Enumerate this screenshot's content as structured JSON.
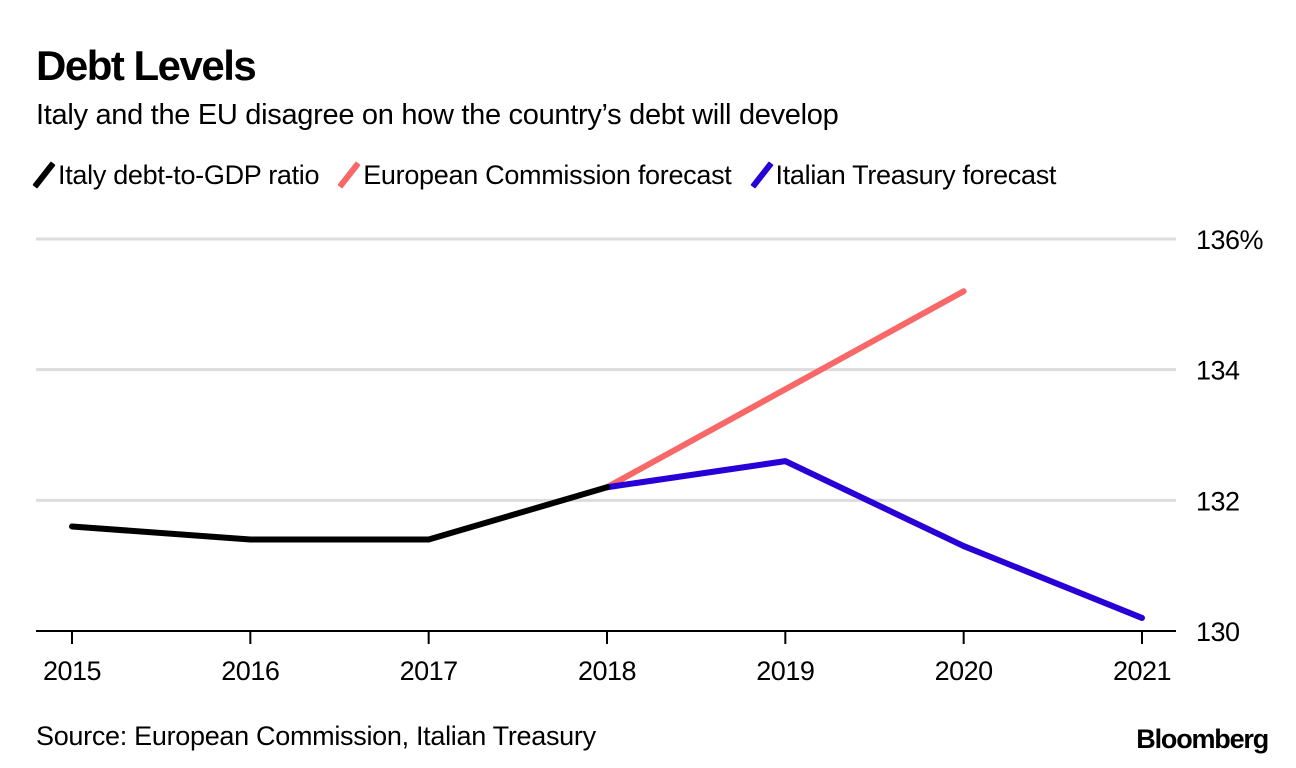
{
  "header": {
    "title": "Debt Levels",
    "subtitle": "Italy and the EU disagree on how the country’s debt will develop"
  },
  "legend": [
    {
      "label": "Italy debt-to-GDP ratio",
      "color": "#000000"
    },
    {
      "label": "European Commission forecast",
      "color": "#f86868"
    },
    {
      "label": "Italian Treasury forecast",
      "color": "#2800d7"
    }
  ],
  "footer": {
    "source": "Source: European Commission, Italian Treasury",
    "brand": "Bloomberg"
  },
  "chart_data": {
    "type": "line",
    "title": "Debt Levels",
    "subtitle": "Italy and the EU disagree on how the country’s debt will develop",
    "xlabel": "",
    "ylabel": "",
    "x": [
      "2015",
      "2016",
      "2017",
      "2018",
      "2019",
      "2020",
      "2021"
    ],
    "ylim": [
      130,
      136
    ],
    "yticks": [
      130,
      132,
      134,
      136
    ],
    "ytick_labels": [
      "130",
      "132",
      "134",
      "136%"
    ],
    "grid": true,
    "legend_position": "top-left",
    "y_axis_side": "right",
    "series": [
      {
        "name": "Italy debt-to-GDP ratio",
        "color": "#000000",
        "x": [
          "2015",
          "2016",
          "2017",
          "2018"
        ],
        "values": [
          131.6,
          131.4,
          131.4,
          132.2
        ]
      },
      {
        "name": "European Commission forecast",
        "color": "#f86868",
        "x": [
          "2018",
          "2019",
          "2020"
        ],
        "values": [
          132.2,
          133.7,
          135.2
        ]
      },
      {
        "name": "Italian Treasury forecast",
        "color": "#2800d7",
        "x": [
          "2018",
          "2019",
          "2020",
          "2021"
        ],
        "values": [
          132.2,
          132.6,
          131.3,
          130.2
        ]
      }
    ]
  }
}
